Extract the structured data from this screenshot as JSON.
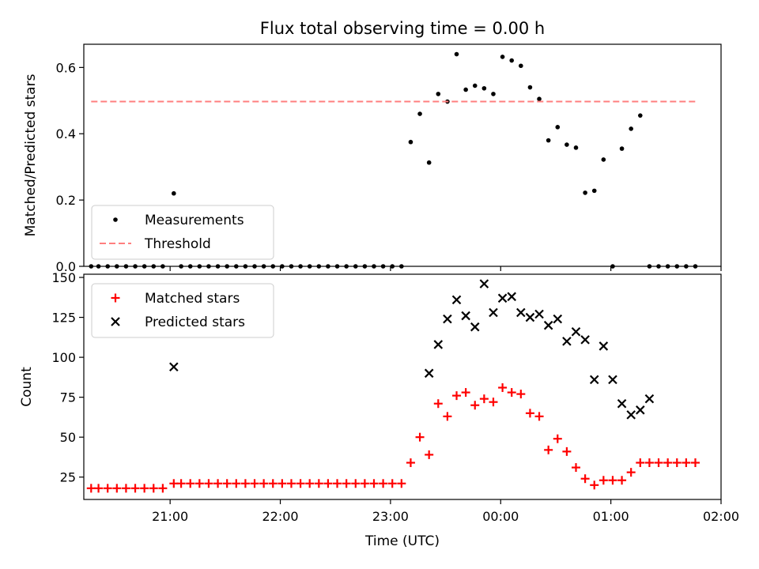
{
  "figure_title": "Flux total observing time = 0.00 h",
  "xlabel": "Time (UTC)",
  "x_ticks": [
    "21:00",
    "22:00",
    "23:00",
    "00:00",
    "01:00",
    "02:00"
  ],
  "colors": {
    "measurements": "#000000",
    "threshold": "#ff7f7f",
    "matched": "#ff0000",
    "predicted": "#000000"
  },
  "chart_data": [
    {
      "type": "scatter",
      "panel": "top",
      "ylabel": "Matched/Predicted stars",
      "ylim": [
        0,
        0.67
      ],
      "yticks": [
        "0.0",
        "0.2",
        "0.4",
        "0.6"
      ],
      "x_range": [
        "20:13",
        "02:00"
      ],
      "legend": {
        "placement": "lower-left",
        "entries": [
          "Measurements",
          "Threshold"
        ]
      },
      "series": [
        {
          "name": "Measurements",
          "marker": "dot",
          "x": [
            "20:17",
            "20:21",
            "20:26",
            "20:31",
            "20:36",
            "20:41",
            "20:46",
            "20:51",
            "20:56",
            "21:02",
            "21:06",
            "21:11",
            "21:16",
            "21:21",
            "21:26",
            "21:31",
            "21:36",
            "21:41",
            "21:46",
            "21:51",
            "21:56",
            "22:01",
            "22:06",
            "22:11",
            "22:16",
            "22:21",
            "22:26",
            "22:31",
            "22:36",
            "22:41",
            "22:46",
            "22:51",
            "22:56",
            "23:01",
            "23:06",
            "23:11",
            "23:16",
            "23:21",
            "23:26",
            "23:31",
            "23:36",
            "23:41",
            "23:46",
            "23:51",
            "23:56",
            "00:01",
            "00:06",
            "00:11",
            "00:16",
            "00:21",
            "00:26",
            "00:31",
            "00:36",
            "00:41",
            "00:46",
            "00:51",
            "00:56",
            "01:01",
            "01:06",
            "01:11",
            "01:16",
            "01:21",
            "01:26",
            "01:31",
            "01:36",
            "01:41",
            "01:46"
          ],
          "y": [
            0,
            0,
            0,
            0,
            0,
            0,
            0,
            0,
            0,
            0.22,
            0,
            0,
            0,
            0,
            0,
            0,
            0,
            0,
            0,
            0,
            0,
            0,
            0,
            0,
            0,
            0,
            0,
            0,
            0,
            0,
            0,
            0,
            0,
            0,
            0,
            0.375,
            0.46,
            0.313,
            0.52,
            0.497,
            0.64,
            0.533,
            0.545,
            0.537,
            0.52,
            0.632,
            0.621,
            0.605,
            0.54,
            0.505,
            0.38,
            0.42,
            0.367,
            0.358,
            0.222,
            0.228,
            0.322,
            0,
            0.355,
            0.415,
            0.455,
            0,
            0,
            0,
            0,
            0,
            0
          ]
        },
        {
          "name": "Threshold",
          "style": "dashed",
          "x": [
            "20:17",
            "01:46"
          ],
          "y": [
            0.497,
            0.497
          ]
        }
      ]
    },
    {
      "type": "scatter",
      "panel": "bottom",
      "ylabel": "Count",
      "ylim": [
        11,
        152
      ],
      "yticks": [
        "25",
        "50",
        "75",
        "100",
        "125",
        "150"
      ],
      "x_range": [
        "20:13",
        "02:00"
      ],
      "legend": {
        "placement": "top-left",
        "entries": [
          "Matched stars",
          "Predicted stars"
        ]
      },
      "series": [
        {
          "name": "Matched stars",
          "marker": "plus",
          "x": [
            "20:17",
            "20:21",
            "20:26",
            "20:31",
            "20:36",
            "20:41",
            "20:46",
            "20:51",
            "20:56",
            "21:02",
            "21:06",
            "21:11",
            "21:16",
            "21:21",
            "21:26",
            "21:31",
            "21:36",
            "21:41",
            "21:46",
            "21:51",
            "21:56",
            "22:01",
            "22:06",
            "22:11",
            "22:16",
            "22:21",
            "22:26",
            "22:31",
            "22:36",
            "22:41",
            "22:46",
            "22:51",
            "22:56",
            "23:01",
            "23:06",
            "23:11",
            "23:16",
            "23:21",
            "23:26",
            "23:31",
            "23:36",
            "23:41",
            "23:46",
            "23:51",
            "23:56",
            "00:01",
            "00:06",
            "00:11",
            "00:16",
            "00:21",
            "00:26",
            "00:31",
            "00:36",
            "00:41",
            "00:46",
            "00:51",
            "00:56",
            "01:01",
            "01:06",
            "01:11",
            "01:16",
            "01:21",
            "01:26",
            "01:31",
            "01:36",
            "01:41",
            "01:46"
          ],
          "y": [
            18,
            18,
            18,
            18,
            18,
            18,
            18,
            18,
            18,
            21,
            21,
            21,
            21,
            21,
            21,
            21,
            21,
            21,
            21,
            21,
            21,
            21,
            21,
            21,
            21,
            21,
            21,
            21,
            21,
            21,
            21,
            21,
            21,
            21,
            21,
            34,
            50,
            39,
            71,
            63,
            76,
            78,
            70,
            74,
            72,
            81,
            78,
            77,
            65,
            63,
            42,
            49,
            41,
            31,
            24,
            20,
            23,
            23,
            23,
            28,
            34,
            34,
            34,
            34,
            34,
            34,
            34
          ]
        },
        {
          "name": "Predicted stars",
          "marker": "x",
          "x": [
            "21:02",
            "23:21",
            "23:26",
            "23:31",
            "23:36",
            "23:41",
            "23:46",
            "23:51",
            "23:56",
            "00:01",
            "00:06",
            "00:11",
            "00:16",
            "00:21",
            "00:26",
            "00:31",
            "00:36",
            "00:41",
            "00:46",
            "00:51",
            "00:56",
            "01:01",
            "01:06",
            "01:11",
            "01:16",
            "01:21"
          ],
          "y": [
            94,
            90,
            108,
            124,
            136,
            126,
            119,
            146,
            128,
            137,
            138,
            128,
            125,
            127,
            120,
            124,
            110,
            116,
            111,
            86,
            107,
            86,
            71,
            64,
            67,
            74
          ]
        }
      ]
    }
  ]
}
